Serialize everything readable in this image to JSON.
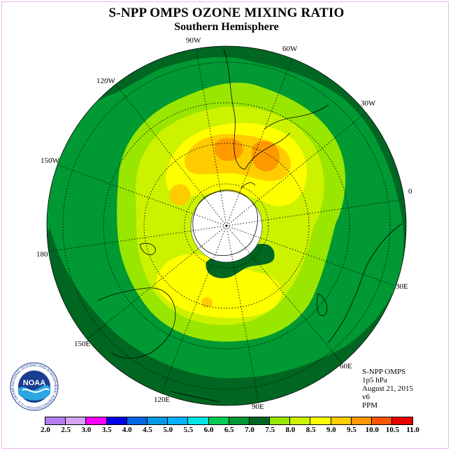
{
  "title": "S-NPP OMPS OZONE MIXING RATIO",
  "subtitle": "Southern Hemisphere",
  "longitude_labels": [
    "90W",
    "60W",
    "30W",
    "0",
    "30E",
    "60E",
    "90E",
    "120E",
    "150E",
    "180",
    "150W",
    "120W"
  ],
  "info": {
    "instrument": "S-NPP OMPS",
    "level": "1p5 hPa",
    "date": "August 21, 2015",
    "version": "v6",
    "units": "PPM"
  },
  "logo": {
    "text": "NOAA",
    "ring_text": "NATIONAL OCEANIC AND ATMOSPHERIC ADMINISTRATION • U.S. DEPARTMENT OF COMMERCE"
  },
  "colorbar": {
    "ticks": [
      "2.0",
      "2.5",
      "3.0",
      "3.5",
      "4.0",
      "4.5",
      "5.0",
      "5.5",
      "6.0",
      "6.5",
      "7.0",
      "7.5",
      "8.0",
      "8.5",
      "9.0",
      "9.5",
      "10.0",
      "10.5",
      "11.0"
    ],
    "colors": [
      "#b57ff0",
      "#d7a3f2",
      "#ff00ff",
      "#0000e6",
      "#0066e6",
      "#0099e6",
      "#00b3ff",
      "#00e5e5",
      "#00cc55",
      "#009933",
      "#006622",
      "#99e600",
      "#ccf200",
      "#ffff00",
      "#ffcc00",
      "#ff9900",
      "#ff5500",
      "#e60000",
      "#8b5a2b"
    ]
  },
  "map_colors": {
    "background": "#006622",
    "level_65": "#009933",
    "level_75": "#99e600",
    "level_80": "#ccf200",
    "level_85": "#ffff00",
    "level_90": "#ffcc00",
    "level_95": "#ff9900",
    "polar_cap": "#ffffff"
  }
}
